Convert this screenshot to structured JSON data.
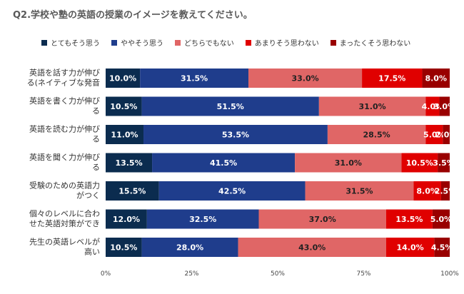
{
  "chart_data": {
    "type": "bar",
    "orientation": "horizontal",
    "stacked": true,
    "title": "Q2.学校や塾の英語の授業のイメージを教えてください。",
    "categories": [
      "英語を話す力が伸びる(ネイティブな発音",
      "英語を書く力が伸びる",
      "英語を読む力が伸びる",
      "英語を聞く力が伸びる",
      "受験のための英語力がつく",
      "個々のレベルに合わせた英語対策ができ",
      "先生の英語レベルが高い"
    ],
    "category_lines": [
      [
        "英語を話す力が伸び",
        "る(ネイティブな発音"
      ],
      [
        "英語を書く力が伸び",
        "る"
      ],
      [
        "英語を読む力が伸び",
        "る"
      ],
      [
        "英語を聞く力が伸び",
        "る"
      ],
      [
        "受験のための英語力",
        "がつく"
      ],
      [
        "個々のレベルに合わ",
        "せた英語対策ができ"
      ],
      [
        "先生の英語レベルが",
        "高い"
      ]
    ],
    "series": [
      {
        "name": "とてもそう思う",
        "color": "#0b2c4f",
        "values": [
          10.0,
          10.5,
          11.0,
          13.5,
          15.5,
          12.0,
          10.5
        ]
      },
      {
        "name": "ややそう思う",
        "color": "#1f3d8c",
        "values": [
          31.5,
          51.5,
          53.5,
          41.5,
          42.5,
          32.5,
          28.0
        ]
      },
      {
        "name": "どちらでもない",
        "color": "#e06666",
        "values": [
          33.0,
          31.0,
          28.5,
          31.0,
          31.5,
          37.0,
          43.0
        ]
      },
      {
        "name": "あまりそう思わない",
        "color": "#e00000",
        "values": [
          17.5,
          4.0,
          5.0,
          10.5,
          8.0,
          13.5,
          14.0
        ]
      },
      {
        "name": "まったくそう思わない",
        "color": "#990000",
        "values": [
          8.0,
          3.0,
          2.0,
          3.5,
          2.5,
          5.0,
          4.5
        ]
      }
    ],
    "data_labels": [
      [
        "10.0%",
        "31.5%",
        "33.0%",
        "17.5%",
        "8.0%"
      ],
      [
        "10.5%",
        "51.5%",
        "31.0%",
        "4.0%",
        "3.0%"
      ],
      [
        "11.0%",
        "53.5%",
        "28.5%",
        "5.0%",
        "2.0%"
      ],
      [
        "13.5%",
        "41.5%",
        "31.0%",
        "10.5%",
        "3.5%"
      ],
      [
        "15.5%",
        "42.5%",
        "31.5%",
        "8.0%",
        "2.5%"
      ],
      [
        "12.0%",
        "32.5%",
        "37.0%",
        "13.5%",
        "5.0%"
      ],
      [
        "10.5%",
        "28.0%",
        "43.0%",
        "14.0%",
        "4.5%"
      ]
    ],
    "label_colors": [
      "#ffffff",
      "#ffffff",
      "#222222",
      "#ffffff",
      "#ffffff"
    ],
    "x_ticks": [
      "0%",
      "25%",
      "50%",
      "75%",
      "100%"
    ],
    "xlim": [
      0,
      100
    ],
    "legend_position": "top",
    "grid": false
  }
}
